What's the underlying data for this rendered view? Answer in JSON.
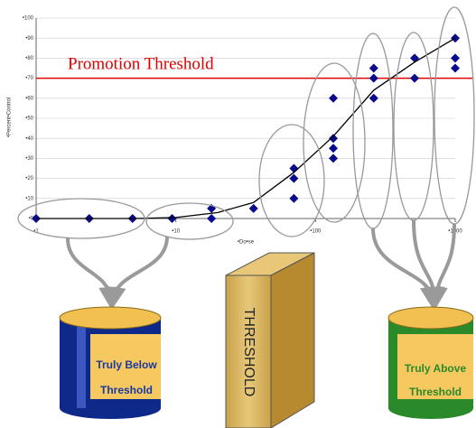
{
  "chart_data": {
    "type": "scatter",
    "x_label": "•Do•se",
    "y_label": "•Percent•Control",
    "xlim": [
      1,
      1000
    ],
    "ylim": [
      0,
      100
    ],
    "log_x": true,
    "grid": true,
    "xticks": [
      {
        "value": 1,
        "label": "•1"
      },
      {
        "value": 10,
        "label": "•10"
      },
      {
        "value": 100,
        "label": "•100"
      },
      {
        "value": 1000,
        "label": "•1000"
      }
    ],
    "yticks": [
      {
        "value": 0,
        "label": "•0"
      },
      {
        "value": 10,
        "label": "•10"
      },
      {
        "value": 20,
        "label": "•20"
      },
      {
        "value": 30,
        "label": "•30"
      },
      {
        "value": 40,
        "label": "•40"
      },
      {
        "value": 50,
        "label": "•50"
      },
      {
        "value": 60,
        "label": "•60"
      },
      {
        "value": 70,
        "label": "•70"
      },
      {
        "value": 80,
        "label": "•80"
      },
      {
        "value": 90,
        "label": "•90"
      },
      {
        "value": 100,
        "label": "•100"
      }
    ],
    "series": [
      {
        "type": "scatter",
        "color": "#0a0a8c",
        "x": [
          1,
          2.4,
          4.9,
          9.4,
          18,
          18,
          36,
          70,
          70,
          70,
          134,
          134,
          134,
          134,
          261,
          261,
          261,
          512,
          512,
          1000,
          1000,
          1000
        ],
        "values": [
          0,
          0,
          0,
          0,
          0,
          5,
          5,
          25,
          20,
          10,
          60,
          40,
          35,
          30,
          75,
          70,
          60,
          80,
          70,
          90,
          80,
          75
        ]
      },
      {
        "type": "line",
        "color": "#000000",
        "x": [
          1,
          5,
          10,
          20,
          36,
          70,
          134,
          261,
          512,
          1000
        ],
        "values": [
          0,
          0,
          0.5,
          3,
          8,
          23,
          41,
          64,
          78,
          90
        ]
      }
    ],
    "threshold": {
      "value": 70,
      "label": "Promotion Threshold",
      "color": "#e00000"
    },
    "annotations": {
      "below": [
        "Truly Below",
        "Threshold"
      ],
      "wall": "THRESHOLD",
      "above": [
        "Truly Above",
        "Threshold"
      ]
    }
  }
}
